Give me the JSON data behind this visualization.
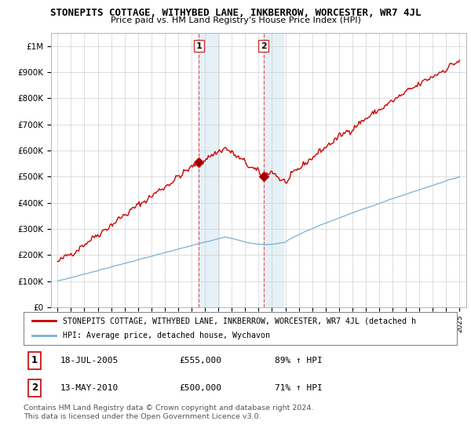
{
  "title": "STONEPITS COTTAGE, WITHYBED LANE, INKBERROW, WORCESTER, WR7 4JL",
  "subtitle": "Price paid vs. HM Land Registry's House Price Index (HPI)",
  "legend_line1": "STONEPITS COTTAGE, WITHYBED LANE, INKBERROW, WORCESTER, WR7 4JL (detached h",
  "legend_line2": "HPI: Average price, detached house, Wychavon",
  "sale1_date": "18-JUL-2005",
  "sale1_price": "£555,000",
  "sale1_hpi": "89% ↑ HPI",
  "sale2_date": "13-MAY-2010",
  "sale2_price": "£500,000",
  "sale2_hpi": "71% ↑ HPI",
  "footer": "Contains HM Land Registry data © Crown copyright and database right 2024.\nThis data is licensed under the Open Government Licence v3.0.",
  "red_color": "#cc0000",
  "blue_color": "#7ab0d4",
  "sale1_x": 2005.54,
  "sale1_y": 555000,
  "sale2_x": 2010.36,
  "sale2_y": 500000,
  "vline1_x": 2005.54,
  "vline2_x": 2010.36,
  "ylim": [
    0,
    1050000
  ],
  "xlim": [
    1994.5,
    2025.5
  ]
}
